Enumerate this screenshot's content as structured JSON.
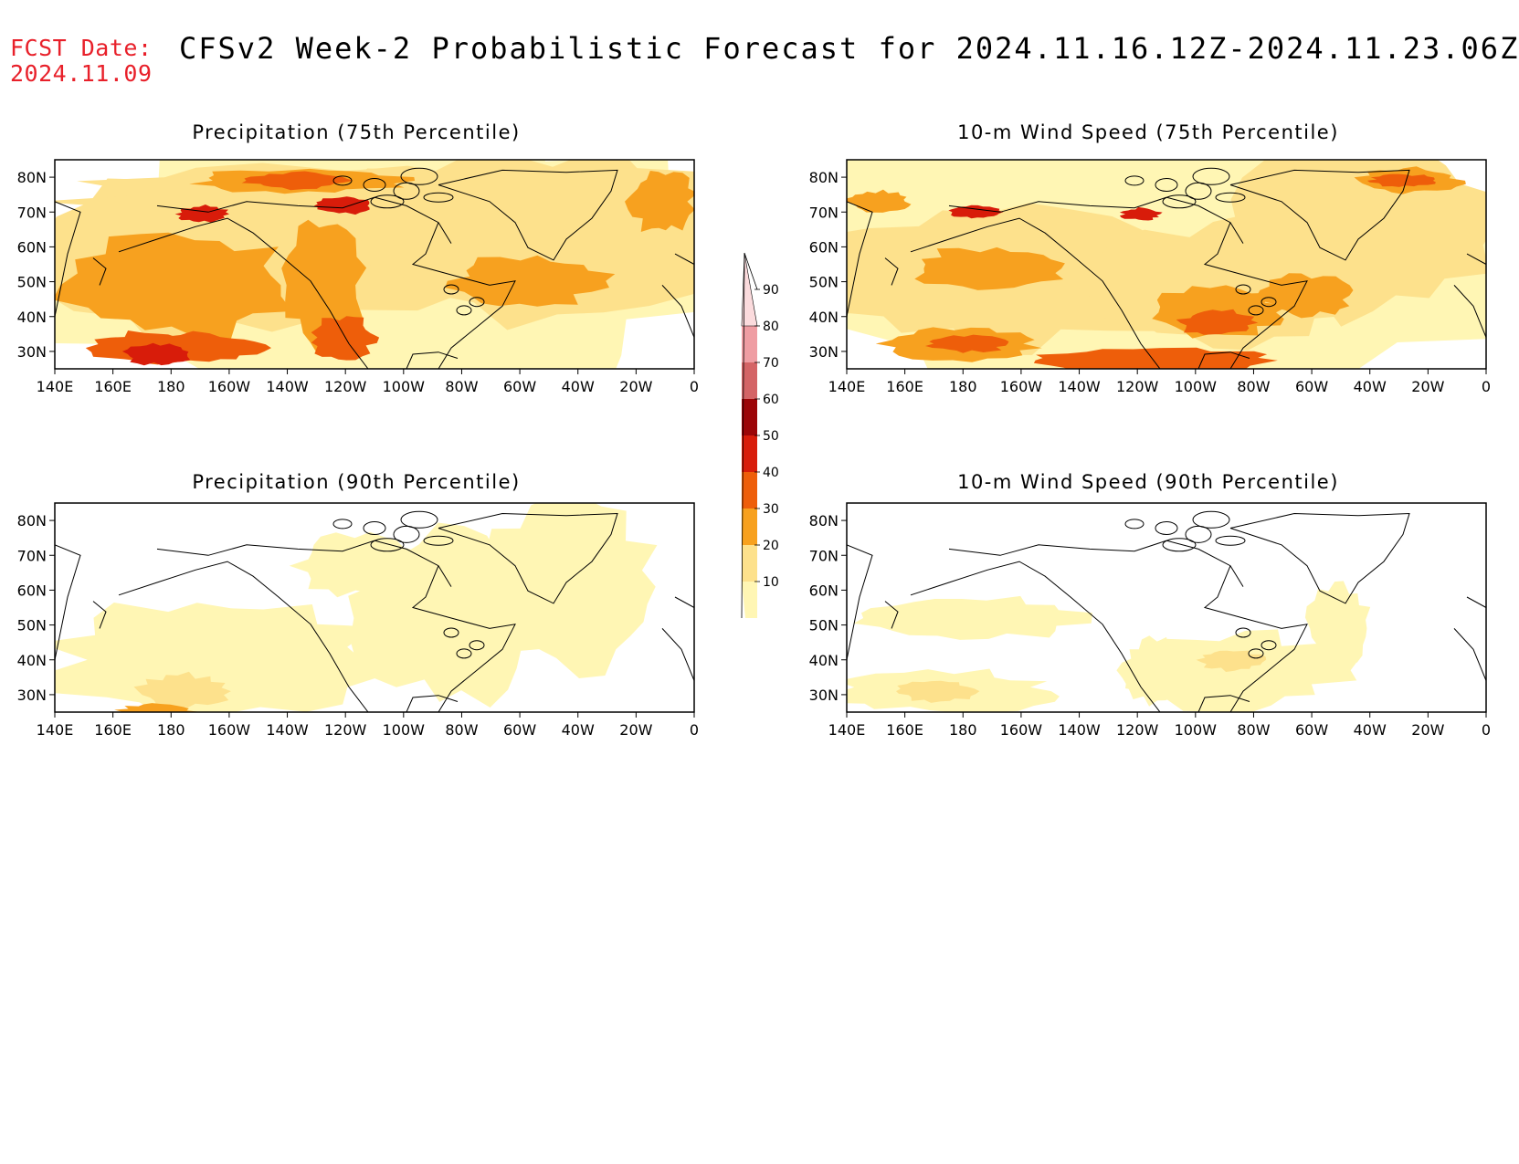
{
  "header": {
    "fcst_label": "FCST Date:",
    "fcst_date": "2024.11.09",
    "title": "CFSv2 Week-2 Probabilistic Forecast for 2024.11.16.12Z-2024.11.23.06Z"
  },
  "axes": {
    "lat_labels": [
      "80N",
      "70N",
      "60N",
      "50N",
      "40N",
      "30N"
    ],
    "lon_labels": [
      "140E",
      "160E",
      "180",
      "160W",
      "140W",
      "120W",
      "100W",
      "80W",
      "60W",
      "40W",
      "20W",
      "0"
    ]
  },
  "panels": [
    {
      "id": "precip75",
      "title": "Precipitation (75th Percentile)",
      "intensity": 3
    },
    {
      "id": "wind75",
      "title": "10-m Wind Speed (75th Percentile)",
      "intensity": 3
    },
    {
      "id": "precip90",
      "title": "Precipitation (90th Percentile)",
      "intensity": 1
    },
    {
      "id": "wind90",
      "title": "10-m Wind Speed (90th Percentile)",
      "intensity": 1
    }
  ],
  "colorbar": {
    "levels": [
      "10",
      "20",
      "30",
      "40",
      "50",
      "60",
      "70",
      "80",
      "90"
    ],
    "colors": [
      "#fff6b4",
      "#fde18c",
      "#f7a11f",
      "#ee5e0a",
      "#d81c0a",
      "#9c0507",
      "#d46466",
      "#ef9da3",
      "#fbdbdd"
    ]
  }
}
